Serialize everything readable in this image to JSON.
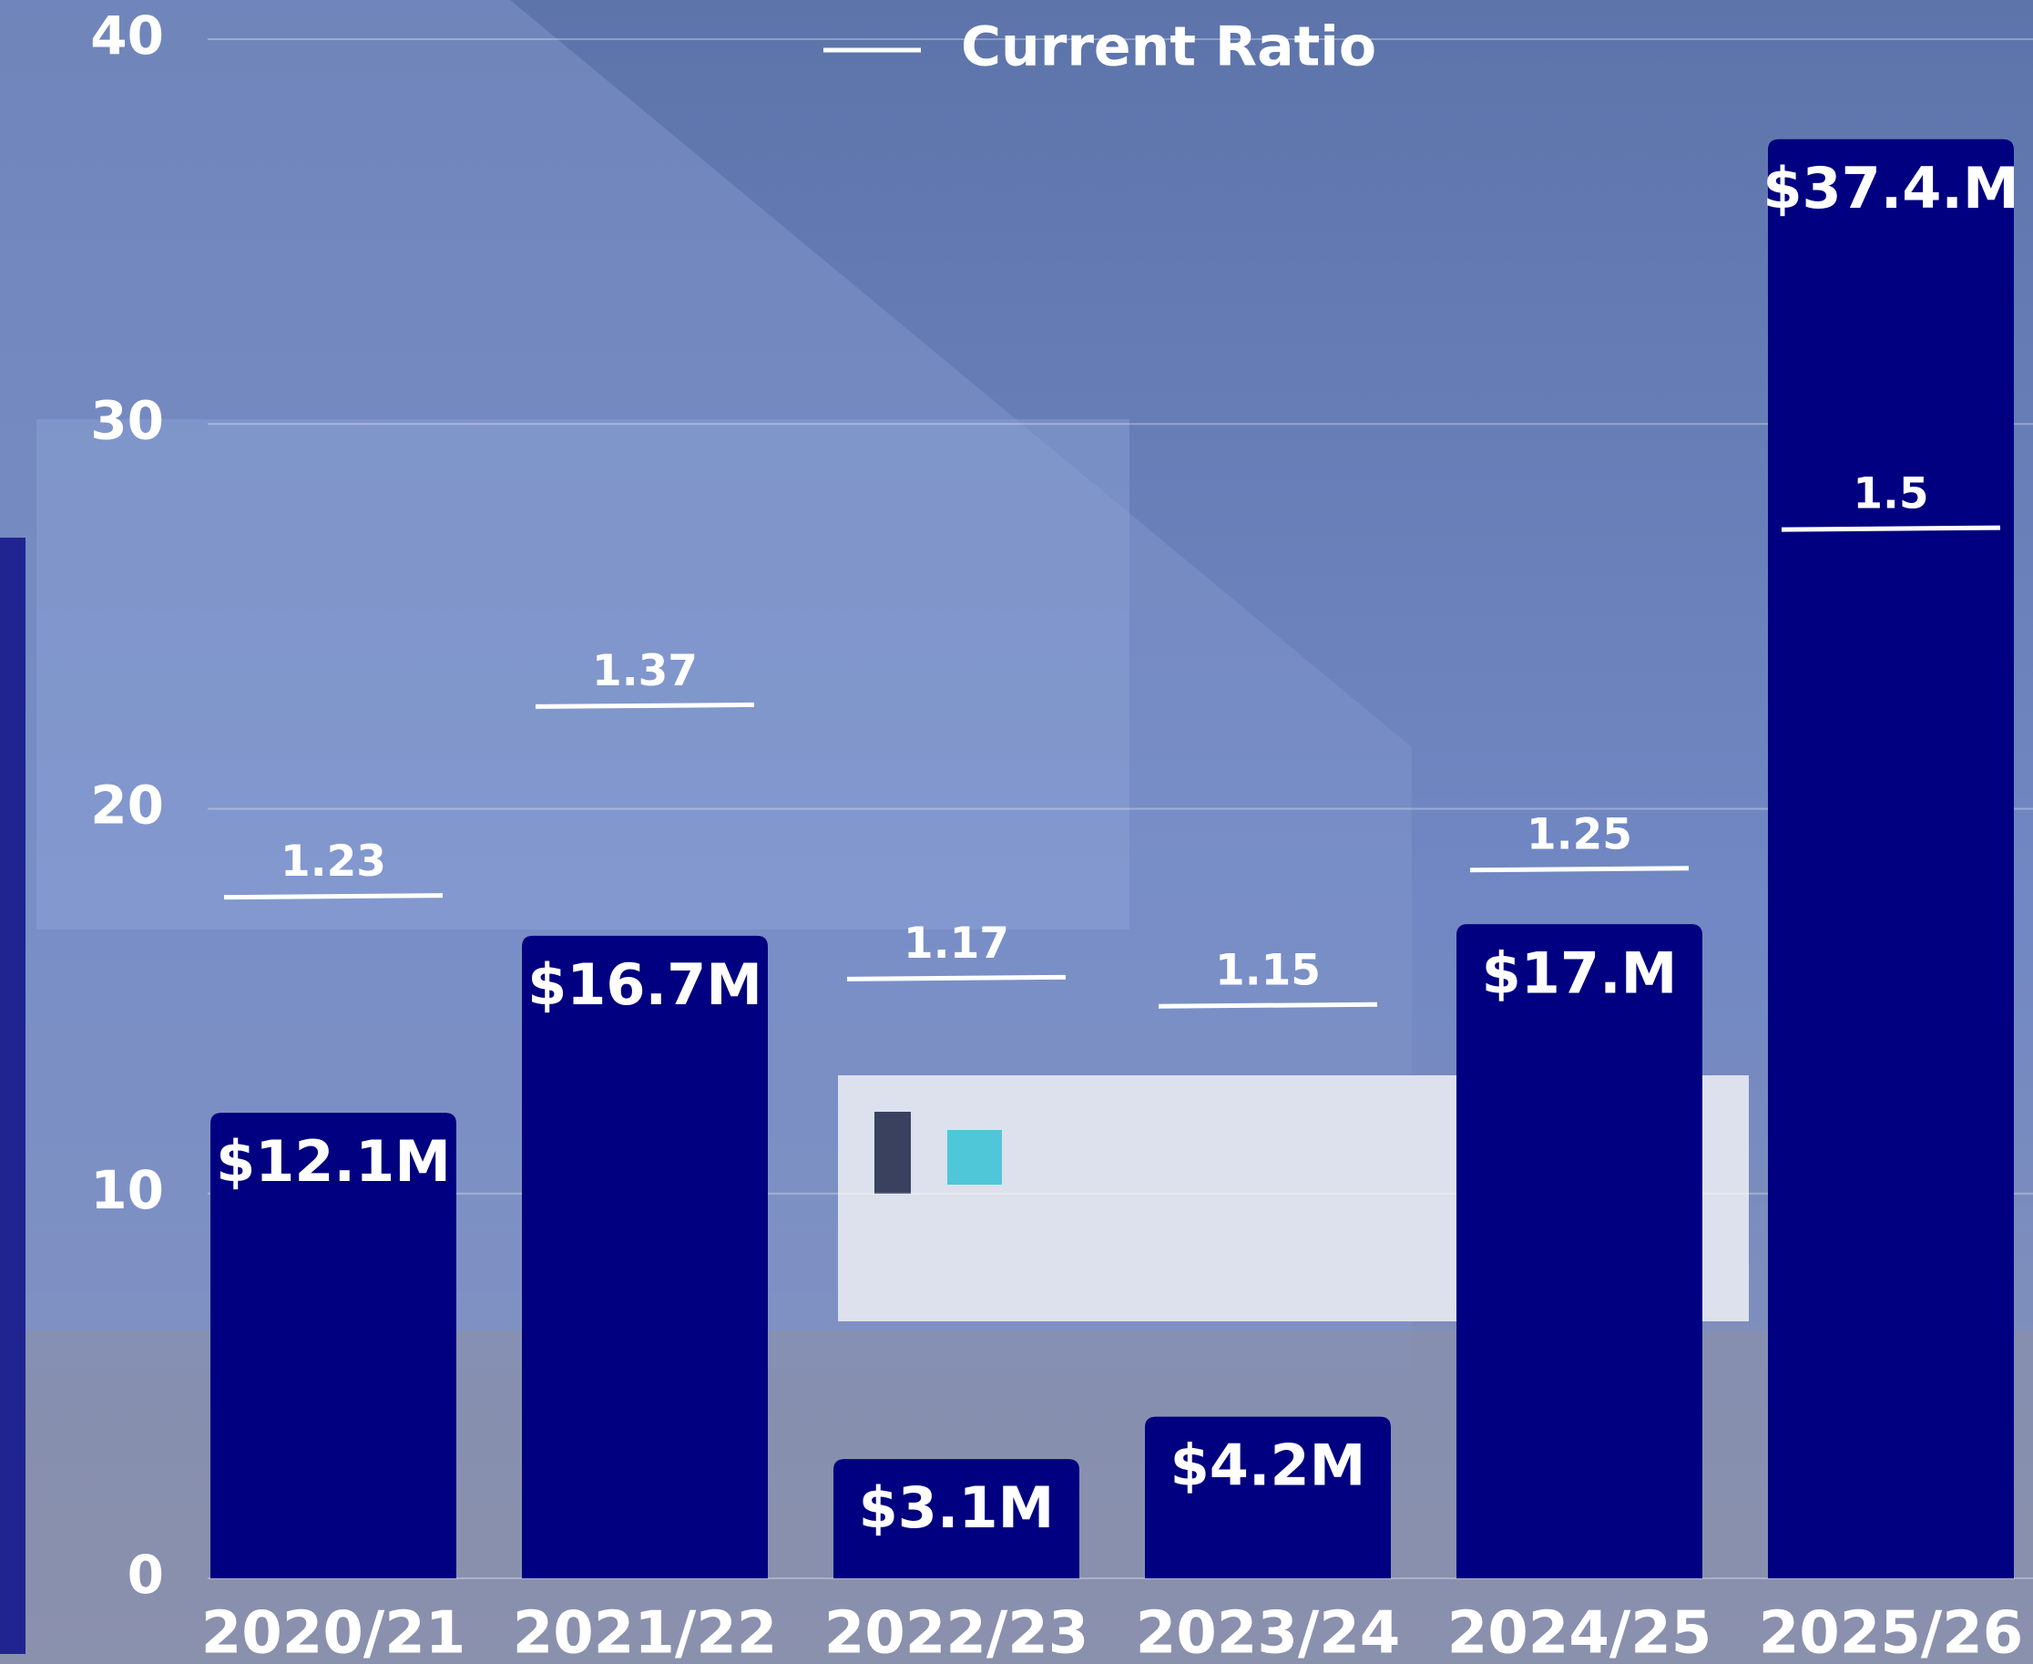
{
  "chart_data": {
    "type": "bar",
    "legend_position": "top",
    "categories": [
      "2020/21",
      "2021/22",
      "2022/23",
      "2023/24",
      "2024/25",
      "2025/26"
    ],
    "series": [
      {
        "color": "#000080",
        "values": [
          12.1,
          16.7,
          3.1,
          4.2,
          17.0,
          37.4
        ],
        "value_labels": [
          "$12.1M",
          "$16.7M",
          "$3.1M",
          "$4.2M",
          "$17.M",
          "$37.4.M"
        ]
      },
      {
        "name": "Current Ratio",
        "type": "marker",
        "color": "#ffffff",
        "values": [
          1.23,
          1.37,
          1.17,
          1.15,
          1.25,
          1.5
        ],
        "axis": "y2"
      }
    ],
    "ylim": [
      0,
      40
    ],
    "yticks": [
      0,
      10,
      20,
      30,
      40
    ],
    "y2lim": [
      0.73,
      1.86
    ],
    "grid": true
  }
}
